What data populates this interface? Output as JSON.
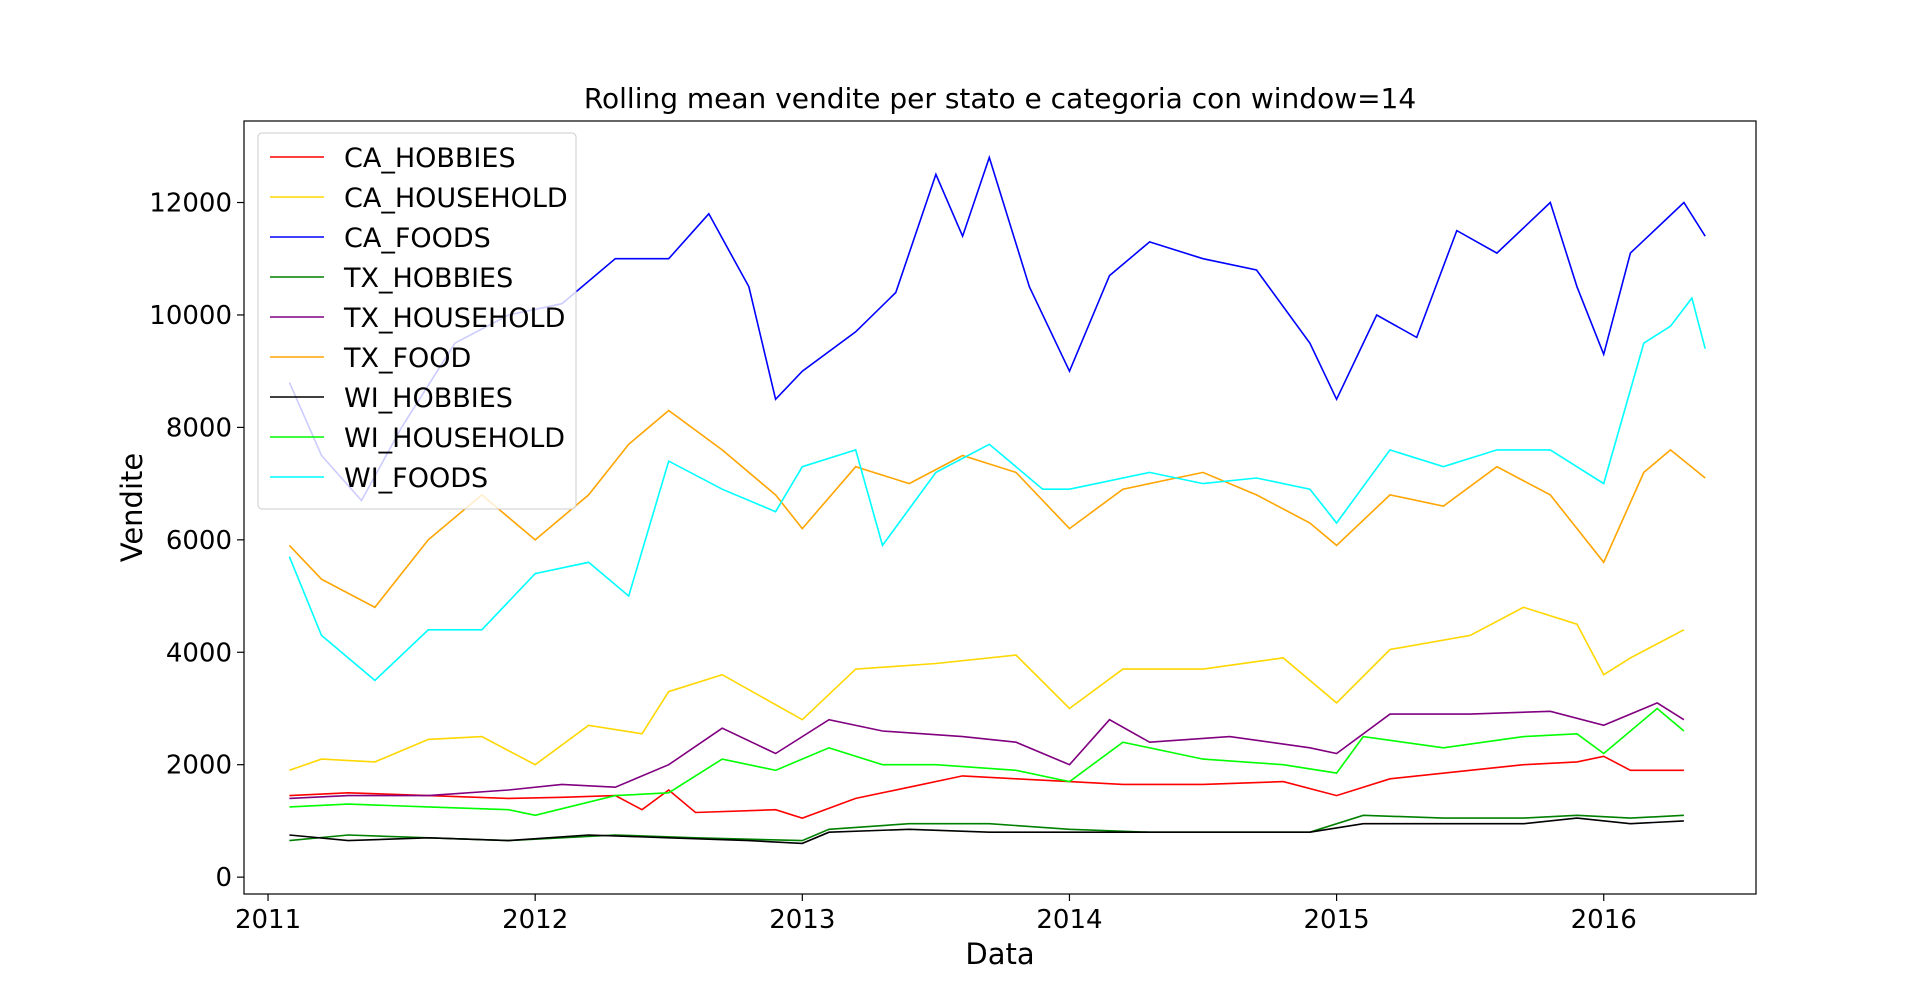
{
  "chart_data": {
    "type": "line",
    "title": "Rolling mean vendite per stato e categoria con window=14",
    "xlabel": "Data",
    "ylabel": "Vendite",
    "xlim": [
      2010.91,
      2016.57
    ],
    "ylim": [
      -300,
      13450
    ],
    "xticks": [
      2011,
      2012,
      2013,
      2014,
      2015,
      2016
    ],
    "xtick_labels": [
      "2011",
      "2012",
      "2013",
      "2014",
      "2015",
      "2016"
    ],
    "yticks": [
      0,
      2000,
      4000,
      6000,
      8000,
      10000,
      12000
    ],
    "ytick_labels": [
      "0",
      "2000",
      "4000",
      "6000",
      "8000",
      "10000",
      "12000"
    ],
    "grid": false,
    "legend_position": "top-left",
    "series": [
      {
        "name": "CA_HOBBIES",
        "color": "#ff0000",
        "points": [
          [
            2011.08,
            1450
          ],
          [
            2011.3,
            1500
          ],
          [
            2011.6,
            1450
          ],
          [
            2011.9,
            1400
          ],
          [
            2012.1,
            1420
          ],
          [
            2012.3,
            1450
          ],
          [
            2012.4,
            1200
          ],
          [
            2012.5,
            1550
          ],
          [
            2012.6,
            1150
          ],
          [
            2012.9,
            1200
          ],
          [
            2013.0,
            1050
          ],
          [
            2013.2,
            1400
          ],
          [
            2013.4,
            1600
          ],
          [
            2013.6,
            1800
          ],
          [
            2013.8,
            1750
          ],
          [
            2014.0,
            1700
          ],
          [
            2014.2,
            1650
          ],
          [
            2014.5,
            1650
          ],
          [
            2014.8,
            1700
          ],
          [
            2015.0,
            1450
          ],
          [
            2015.2,
            1750
          ],
          [
            2015.5,
            1900
          ],
          [
            2015.7,
            2000
          ],
          [
            2015.9,
            2050
          ],
          [
            2016.0,
            2150
          ],
          [
            2016.1,
            1900
          ],
          [
            2016.3,
            1900
          ]
        ]
      },
      {
        "name": "CA_HOUSEHOLD",
        "color": "#ffd700",
        "points": [
          [
            2011.08,
            1900
          ],
          [
            2011.2,
            2100
          ],
          [
            2011.4,
            2050
          ],
          [
            2011.6,
            2450
          ],
          [
            2011.8,
            2500
          ],
          [
            2012.0,
            2000
          ],
          [
            2012.2,
            2700
          ],
          [
            2012.4,
            2550
          ],
          [
            2012.5,
            3300
          ],
          [
            2012.7,
            3600
          ],
          [
            2013.0,
            2800
          ],
          [
            2013.2,
            3700
          ],
          [
            2013.5,
            3800
          ],
          [
            2013.8,
            3950
          ],
          [
            2014.0,
            3000
          ],
          [
            2014.2,
            3700
          ],
          [
            2014.5,
            3700
          ],
          [
            2014.8,
            3900
          ],
          [
            2015.0,
            3100
          ],
          [
            2015.2,
            4050
          ],
          [
            2015.5,
            4300
          ],
          [
            2015.7,
            4800
          ],
          [
            2015.9,
            4500
          ],
          [
            2016.0,
            3600
          ],
          [
            2016.1,
            3900
          ],
          [
            2016.3,
            4400
          ]
        ]
      },
      {
        "name": "CA_FOODS",
        "color": "#0000ff",
        "points": [
          [
            2011.08,
            8800
          ],
          [
            2011.2,
            7500
          ],
          [
            2011.35,
            6700
          ],
          [
            2011.5,
            8000
          ],
          [
            2011.7,
            9500
          ],
          [
            2011.9,
            10000
          ],
          [
            2012.1,
            10200
          ],
          [
            2012.3,
            11000
          ],
          [
            2012.5,
            11000
          ],
          [
            2012.65,
            11800
          ],
          [
            2012.8,
            10500
          ],
          [
            2012.9,
            8500
          ],
          [
            2013.0,
            9000
          ],
          [
            2013.2,
            9700
          ],
          [
            2013.35,
            10400
          ],
          [
            2013.5,
            12500
          ],
          [
            2013.6,
            11400
          ],
          [
            2013.7,
            12800
          ],
          [
            2013.85,
            10500
          ],
          [
            2014.0,
            9000
          ],
          [
            2014.15,
            10700
          ],
          [
            2014.3,
            11300
          ],
          [
            2014.5,
            11000
          ],
          [
            2014.7,
            10800
          ],
          [
            2014.9,
            9500
          ],
          [
            2015.0,
            8500
          ],
          [
            2015.15,
            10000
          ],
          [
            2015.3,
            9600
          ],
          [
            2015.45,
            11500
          ],
          [
            2015.6,
            11100
          ],
          [
            2015.8,
            12000
          ],
          [
            2015.9,
            10500
          ],
          [
            2016.0,
            9300
          ],
          [
            2016.1,
            11100
          ],
          [
            2016.3,
            12000
          ],
          [
            2016.38,
            11400
          ]
        ]
      },
      {
        "name": "TX_HOBBIES",
        "color": "#008000",
        "points": [
          [
            2011.08,
            650
          ],
          [
            2011.3,
            750
          ],
          [
            2011.6,
            700
          ],
          [
            2011.9,
            650
          ],
          [
            2012.1,
            700
          ],
          [
            2012.3,
            750
          ],
          [
            2012.6,
            700
          ],
          [
            2013.0,
            650
          ],
          [
            2013.1,
            850
          ],
          [
            2013.4,
            950
          ],
          [
            2013.7,
            950
          ],
          [
            2014.0,
            850
          ],
          [
            2014.3,
            800
          ],
          [
            2014.6,
            800
          ],
          [
            2014.9,
            800
          ],
          [
            2015.1,
            1100
          ],
          [
            2015.4,
            1050
          ],
          [
            2015.7,
            1050
          ],
          [
            2015.9,
            1100
          ],
          [
            2016.1,
            1050
          ],
          [
            2016.3,
            1100
          ]
        ]
      },
      {
        "name": "TX_HOUSEHOLD",
        "color": "#800080",
        "points": [
          [
            2011.08,
            1400
          ],
          [
            2011.3,
            1450
          ],
          [
            2011.6,
            1450
          ],
          [
            2011.9,
            1550
          ],
          [
            2012.1,
            1650
          ],
          [
            2012.3,
            1600
          ],
          [
            2012.5,
            2000
          ],
          [
            2012.7,
            2650
          ],
          [
            2012.9,
            2200
          ],
          [
            2013.1,
            2800
          ],
          [
            2013.3,
            2600
          ],
          [
            2013.6,
            2500
          ],
          [
            2013.8,
            2400
          ],
          [
            2014.0,
            2000
          ],
          [
            2014.15,
            2800
          ],
          [
            2014.3,
            2400
          ],
          [
            2014.6,
            2500
          ],
          [
            2014.9,
            2300
          ],
          [
            2015.0,
            2200
          ],
          [
            2015.2,
            2900
          ],
          [
            2015.5,
            2900
          ],
          [
            2015.8,
            2950
          ],
          [
            2016.0,
            2700
          ],
          [
            2016.2,
            3100
          ],
          [
            2016.3,
            2800
          ]
        ]
      },
      {
        "name": "TX_FOOD",
        "color": "#ffa500",
        "points": [
          [
            2011.08,
            5900
          ],
          [
            2011.2,
            5300
          ],
          [
            2011.4,
            4800
          ],
          [
            2011.6,
            6000
          ],
          [
            2011.8,
            6800
          ],
          [
            2012.0,
            6000
          ],
          [
            2012.2,
            6800
          ],
          [
            2012.35,
            7700
          ],
          [
            2012.5,
            8300
          ],
          [
            2012.7,
            7600
          ],
          [
            2012.9,
            6800
          ],
          [
            2013.0,
            6200
          ],
          [
            2013.2,
            7300
          ],
          [
            2013.4,
            7000
          ],
          [
            2013.6,
            7500
          ],
          [
            2013.8,
            7200
          ],
          [
            2014.0,
            6200
          ],
          [
            2014.2,
            6900
          ],
          [
            2014.5,
            7200
          ],
          [
            2014.7,
            6800
          ],
          [
            2014.9,
            6300
          ],
          [
            2015.0,
            5900
          ],
          [
            2015.2,
            6800
          ],
          [
            2015.4,
            6600
          ],
          [
            2015.6,
            7300
          ],
          [
            2015.8,
            6800
          ],
          [
            2016.0,
            5600
          ],
          [
            2016.15,
            7200
          ],
          [
            2016.25,
            7600
          ],
          [
            2016.38,
            7100
          ]
        ]
      },
      {
        "name": "WI_HOBBIES",
        "color": "#000000",
        "points": [
          [
            2011.08,
            750
          ],
          [
            2011.3,
            650
          ],
          [
            2011.6,
            700
          ],
          [
            2011.9,
            650
          ],
          [
            2012.2,
            750
          ],
          [
            2012.5,
            700
          ],
          [
            2012.8,
            650
          ],
          [
            2013.0,
            600
          ],
          [
            2013.1,
            800
          ],
          [
            2013.4,
            850
          ],
          [
            2013.7,
            800
          ],
          [
            2014.0,
            800
          ],
          [
            2014.3,
            800
          ],
          [
            2014.6,
            800
          ],
          [
            2014.9,
            800
          ],
          [
            2015.1,
            950
          ],
          [
            2015.4,
            950
          ],
          [
            2015.7,
            950
          ],
          [
            2015.9,
            1050
          ],
          [
            2016.1,
            950
          ],
          [
            2016.3,
            1000
          ]
        ]
      },
      {
        "name": "WI_HOUSEHOLD",
        "color": "#00ff00",
        "points": [
          [
            2011.08,
            1250
          ],
          [
            2011.3,
            1300
          ],
          [
            2011.6,
            1250
          ],
          [
            2011.9,
            1200
          ],
          [
            2012.0,
            1100
          ],
          [
            2012.3,
            1450
          ],
          [
            2012.5,
            1500
          ],
          [
            2012.7,
            2100
          ],
          [
            2012.9,
            1900
          ],
          [
            2013.1,
            2300
          ],
          [
            2013.3,
            2000
          ],
          [
            2013.5,
            2000
          ],
          [
            2013.8,
            1900
          ],
          [
            2014.0,
            1700
          ],
          [
            2014.2,
            2400
          ],
          [
            2014.5,
            2100
          ],
          [
            2014.8,
            2000
          ],
          [
            2015.0,
            1850
          ],
          [
            2015.1,
            2500
          ],
          [
            2015.4,
            2300
          ],
          [
            2015.7,
            2500
          ],
          [
            2015.9,
            2550
          ],
          [
            2016.0,
            2200
          ],
          [
            2016.2,
            3000
          ],
          [
            2016.3,
            2600
          ]
        ]
      },
      {
        "name": "WI_FOODS",
        "color": "#00ffff",
        "points": [
          [
            2011.08,
            5700
          ],
          [
            2011.2,
            4300
          ],
          [
            2011.4,
            3500
          ],
          [
            2011.6,
            4400
          ],
          [
            2011.8,
            4400
          ],
          [
            2012.0,
            5400
          ],
          [
            2012.2,
            5600
          ],
          [
            2012.35,
            5000
          ],
          [
            2012.5,
            7400
          ],
          [
            2012.7,
            6900
          ],
          [
            2012.9,
            6500
          ],
          [
            2013.0,
            7300
          ],
          [
            2013.2,
            7600
          ],
          [
            2013.3,
            5900
          ],
          [
            2013.5,
            7200
          ],
          [
            2013.7,
            7700
          ],
          [
            2013.9,
            6900
          ],
          [
            2014.0,
            6900
          ],
          [
            2014.3,
            7200
          ],
          [
            2014.5,
            7000
          ],
          [
            2014.7,
            7100
          ],
          [
            2014.9,
            6900
          ],
          [
            2015.0,
            6300
          ],
          [
            2015.2,
            7600
          ],
          [
            2015.4,
            7300
          ],
          [
            2015.6,
            7600
          ],
          [
            2015.8,
            7600
          ],
          [
            2016.0,
            7000
          ],
          [
            2016.15,
            9500
          ],
          [
            2016.25,
            9800
          ],
          [
            2016.33,
            10300
          ],
          [
            2016.38,
            9400
          ]
        ]
      }
    ]
  }
}
